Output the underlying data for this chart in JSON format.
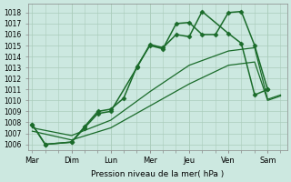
{
  "background_color": "#cce8e0",
  "grid_color": "#aaccbb",
  "line_color": "#1a6b2a",
  "x_labels": [
    "Mar",
    "Dim",
    "Lun",
    "Mer",
    "Jeu",
    "Ven",
    "Sam"
  ],
  "xlabel": "Pression niveau de la mer( hPa )",
  "ylim": [
    1005.5,
    1018.8
  ],
  "yticks": [
    1006,
    1007,
    1008,
    1009,
    1010,
    1011,
    1012,
    1013,
    1014,
    1015,
    1016,
    1017,
    1018
  ],
  "series": [
    {
      "x": [
        0,
        0.33,
        1.0,
        1.33,
        1.67,
        2.0,
        2.33,
        2.67,
        3.0,
        3.33,
        3.67,
        4.0,
        4.33,
        4.67,
        5.0,
        5.33,
        5.67,
        6.0
      ],
      "y": [
        1007.8,
        1006.0,
        1006.2,
        1007.6,
        1009.0,
        1009.2,
        1010.2,
        1013.1,
        1015.0,
        1014.7,
        1017.0,
        1017.1,
        1016.0,
        1016.0,
        1018.0,
        1018.1,
        1015.0,
        1011.0
      ],
      "marker": "D",
      "markersize": 2.5,
      "linewidth": 1.1
    },
    {
      "x": [
        0,
        0.33,
        1.0,
        1.33,
        1.67,
        2.0,
        2.67,
        3.0,
        3.33,
        3.67,
        4.0,
        4.33,
        5.0,
        5.33,
        5.67,
        6.0
      ],
      "y": [
        1007.8,
        1006.0,
        1006.2,
        1007.5,
        1008.8,
        1009.0,
        1013.0,
        1015.1,
        1014.8,
        1016.0,
        1015.8,
        1018.1,
        1016.1,
        1015.2,
        1010.5,
        1011.0
      ],
      "marker": "D",
      "markersize": 2.5,
      "linewidth": 1.1
    },
    {
      "x": [
        0,
        1.0,
        2.0,
        3.0,
        4.0,
        5.0,
        5.67,
        6.0,
        6.33
      ],
      "y": [
        1007.5,
        1006.8,
        1008.2,
        1010.8,
        1013.2,
        1014.5,
        1014.8,
        1010.1,
        1010.5
      ],
      "marker": null,
      "markersize": 0,
      "linewidth": 0.9
    },
    {
      "x": [
        0,
        1.0,
        2.0,
        3.0,
        4.0,
        5.0,
        5.67,
        6.0,
        6.33
      ],
      "y": [
        1007.2,
        1006.4,
        1007.5,
        1009.5,
        1011.5,
        1013.2,
        1013.5,
        1010.0,
        1010.4
      ],
      "marker": null,
      "markersize": 0,
      "linewidth": 0.9
    }
  ]
}
